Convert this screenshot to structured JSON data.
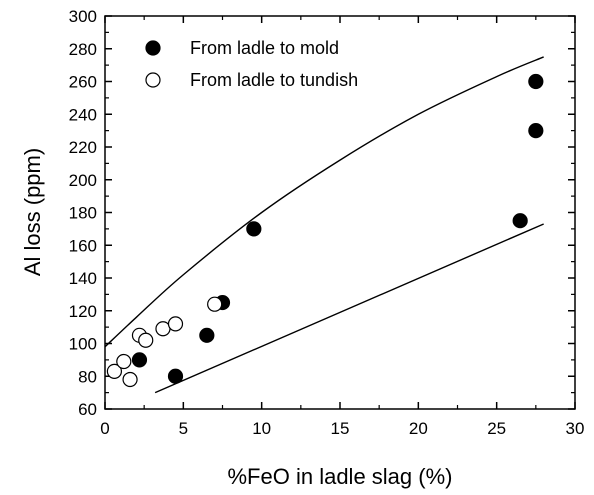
{
  "chart_data": {
    "type": "scatter",
    "title": "",
    "xlabel": "%FeO in ladle slag (%)",
    "ylabel": "Al loss (ppm)",
    "xlim": [
      0,
      30
    ],
    "ylim": [
      60,
      300
    ],
    "xticks": [
      0,
      5,
      10,
      15,
      20,
      25,
      30
    ],
    "yticks": [
      60,
      80,
      100,
      120,
      140,
      160,
      180,
      200,
      220,
      240,
      260,
      280,
      300
    ],
    "grid": false,
    "legend_position": "top-left",
    "series": [
      {
        "name": "From ladle to mold",
        "marker": "filled-circle",
        "color": "#000000",
        "points": [
          {
            "x": 2.2,
            "y": 90
          },
          {
            "x": 4.5,
            "y": 80
          },
          {
            "x": 6.5,
            "y": 105
          },
          {
            "x": 7.5,
            "y": 125
          },
          {
            "x": 9.5,
            "y": 170
          },
          {
            "x": 26.5,
            "y": 175
          },
          {
            "x": 27.5,
            "y": 230
          },
          {
            "x": 27.5,
            "y": 260
          }
        ]
      },
      {
        "name": "From ladle to tundish",
        "marker": "open-circle",
        "color": "#000000",
        "points": [
          {
            "x": 0.6,
            "y": 83
          },
          {
            "x": 1.2,
            "y": 89
          },
          {
            "x": 1.6,
            "y": 78
          },
          {
            "x": 2.2,
            "y": 105
          },
          {
            "x": 2.6,
            "y": 102
          },
          {
            "x": 3.7,
            "y": 109
          },
          {
            "x": 4.5,
            "y": 112
          },
          {
            "x": 7.0,
            "y": 124
          }
        ]
      }
    ],
    "bounds": [
      {
        "points": [
          {
            "x": 0,
            "y": 98
          },
          {
            "x": 2,
            "y": 116
          },
          {
            "x": 5,
            "y": 142
          },
          {
            "x": 10,
            "y": 180
          },
          {
            "x": 15,
            "y": 212
          },
          {
            "x": 20,
            "y": 240
          },
          {
            "x": 25,
            "y": 263
          },
          {
            "x": 28,
            "y": 275
          }
        ]
      },
      {
        "points": [
          {
            "x": 3.2,
            "y": 70
          },
          {
            "x": 28,
            "y": 173
          }
        ]
      }
    ]
  }
}
